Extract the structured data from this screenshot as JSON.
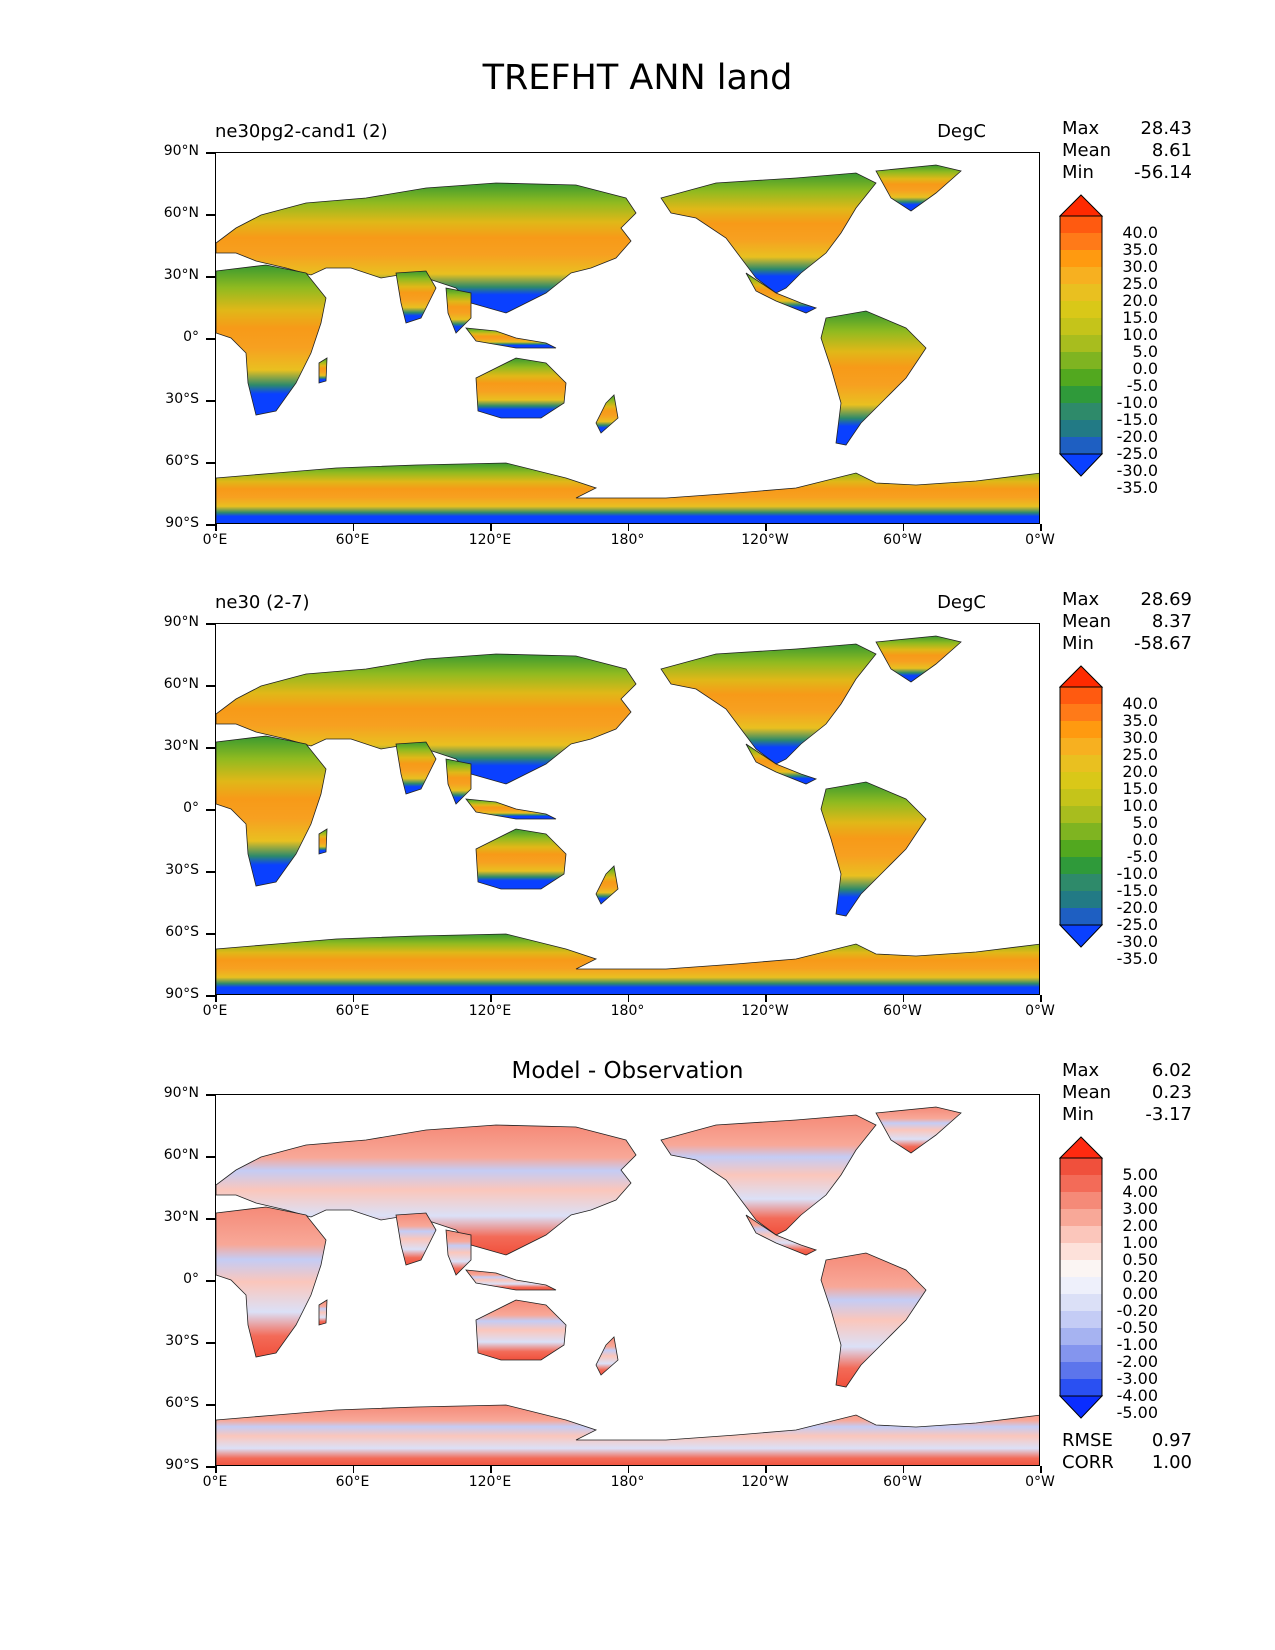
{
  "title": "TREFHT ANN land",
  "y_labels": [
    "90°N",
    "60°N",
    "30°N",
    "0°",
    "30°S",
    "60°S",
    "90°S"
  ],
  "x_labels": [
    "0°E",
    "60°E",
    "120°E",
    "180°",
    "120°W",
    "60°W",
    "0°W"
  ],
  "panels": [
    {
      "left_title": "ne30pg2-cand1 (2)",
      "right_title": "DegC",
      "center_title": "",
      "stats": {
        "max_label": "Max",
        "max": "28.43",
        "mean_label": "Mean",
        "mean": "8.61",
        "min_label": "Min",
        "min": "-56.14"
      },
      "colorbar": {
        "labels": [
          "40.0",
          "35.0",
          "30.0",
          "25.0",
          "20.0",
          "15.0",
          "10.0",
          "5.0",
          "0.0",
          "-5.0",
          "-10.0",
          "-15.0",
          "-20.0",
          "-25.0",
          "-30.0",
          "-35.0"
        ],
        "colors": [
          "#ff2a00",
          "#ff5a10",
          "#ff7a18",
          "#ff9a10",
          "#f7b020",
          "#e9c020",
          "#d9c818",
          "#c5c41a",
          "#a8bd1e",
          "#7fb421",
          "#52a81f",
          "#2f9a3a",
          "#2e8a6a",
          "#227a85",
          "#1e5fc2",
          "#0a40ff"
        ]
      }
    },
    {
      "left_title": "ne30 (2-7)",
      "right_title": "DegC",
      "center_title": "",
      "stats": {
        "max_label": "Max",
        "max": "28.69",
        "mean_label": "Mean",
        "mean": "8.37",
        "min_label": "Min",
        "min": "-58.67"
      },
      "colorbar": {
        "labels": [
          "40.0",
          "35.0",
          "30.0",
          "25.0",
          "20.0",
          "15.0",
          "10.0",
          "5.0",
          "0.0",
          "-5.0",
          "-10.0",
          "-15.0",
          "-20.0",
          "-25.0",
          "-30.0",
          "-35.0"
        ],
        "colors": [
          "#ff2a00",
          "#ff5a10",
          "#ff7a18",
          "#ff9a10",
          "#f7b020",
          "#e9c020",
          "#d9c818",
          "#c5c41a",
          "#a8bd1e",
          "#7fb421",
          "#52a81f",
          "#2f9a3a",
          "#2e8a6a",
          "#227a85",
          "#1e5fc2",
          "#0a40ff"
        ]
      }
    },
    {
      "left_title": "",
      "right_title": "",
      "center_title": "Model - Observation",
      "stats": {
        "max_label": "Max",
        "max": "6.02",
        "mean_label": "Mean",
        "mean": "0.23",
        "min_label": "Min",
        "min": "-3.17"
      },
      "colorbar": {
        "labels": [
          "5.00",
          "4.00",
          "3.00",
          "2.00",
          "1.00",
          "0.50",
          "0.20",
          "0.00",
          "-0.20",
          "-0.50",
          "-1.00",
          "-2.00",
          "-3.00",
          "-4.00",
          "-5.00"
        ],
        "colors": [
          "#ff2a10",
          "#f0503c",
          "#f36b58",
          "#f58a78",
          "#f8a898",
          "#fbc6bb",
          "#fde1da",
          "#fbf5f3",
          "#eef0fb",
          "#dbe0f7",
          "#c4ccf5",
          "#a6b3f1",
          "#8495ee",
          "#5c75ec",
          "#2a50f2",
          "#0a2dff"
        ]
      },
      "extra": {
        "rmse_label": "RMSE",
        "rmse": "0.97",
        "corr_label": "CORR",
        "corr": "1.00"
      }
    }
  ]
}
